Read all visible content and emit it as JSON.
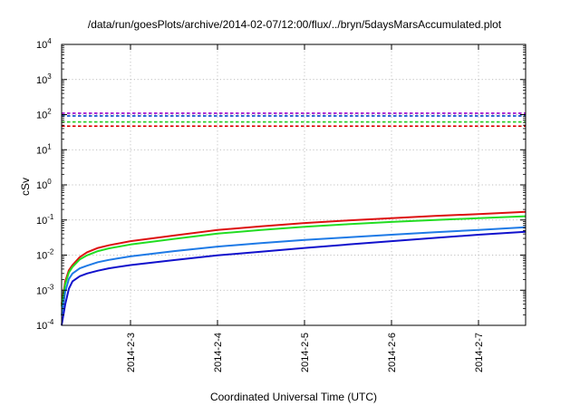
{
  "chart_data": {
    "type": "line",
    "title": "/data/run/goesPlots/archive/2014-02-07/12:00/flux/../bryn/5daysMarsAccumulated.plot",
    "xlabel": "Coordinated Universal Time (UTC)",
    "ylabel": "cSv",
    "yscale": "log",
    "ylim": [
      0.0001,
      10000
    ],
    "xlim": [
      "2014-02-02 05:00",
      "2014-02-07 13:00"
    ],
    "grid": true,
    "y_ticks": [
      {
        "value": 0.0001,
        "base": "10",
        "exp": "-4"
      },
      {
        "value": 0.001,
        "base": "10",
        "exp": "-3"
      },
      {
        "value": 0.01,
        "base": "10",
        "exp": "-2"
      },
      {
        "value": 0.1,
        "base": "10",
        "exp": "-1"
      },
      {
        "value": 1,
        "base": "10",
        "exp": "0"
      },
      {
        "value": 10,
        "base": "10",
        "exp": "1"
      },
      {
        "value": 100,
        "base": "10",
        "exp": "2"
      },
      {
        "value": 1000,
        "base": "10",
        "exp": "3"
      },
      {
        "value": 10000,
        "base": "10",
        "exp": "4"
      }
    ],
    "x_ticks": [
      {
        "value": "2014-02-03 00:00",
        "label": "2014-2-3"
      },
      {
        "value": "2014-02-04 00:00",
        "label": "2014-2-4"
      },
      {
        "value": "2014-02-05 00:00",
        "label": "2014-2-5"
      },
      {
        "value": "2014-02-06 00:00",
        "label": "2014-2-6"
      },
      {
        "value": "2014-02-07 00:00",
        "label": "2014-2-7"
      }
    ],
    "thresholds": [
      {
        "color": "#9900cc",
        "value": 110
      },
      {
        "color": "#0044cc",
        "value": 92
      },
      {
        "color": "#22cc22",
        "value": 62
      },
      {
        "color": "#dd0000",
        "value": 47
      }
    ],
    "series": [
      {
        "color": "#dd1111",
        "points": [
          [
            "2014-02-02 05:00",
            0.0004
          ],
          [
            "2014-02-02 06:00",
            0.0018
          ],
          [
            "2014-02-02 07:00",
            0.0037
          ],
          [
            "2014-02-02 08:00",
            0.0052
          ],
          [
            "2014-02-02 10:00",
            0.0088
          ],
          [
            "2014-02-02 12:00",
            0.012
          ],
          [
            "2014-02-02 15:00",
            0.016
          ],
          [
            "2014-02-02 18:00",
            0.019
          ],
          [
            "2014-02-03 00:00",
            0.025
          ],
          [
            "2014-02-03 12:00",
            0.036
          ],
          [
            "2014-02-04 00:00",
            0.052
          ],
          [
            "2014-02-04 12:00",
            0.066
          ],
          [
            "2014-02-05 00:00",
            0.082
          ],
          [
            "2014-02-05 12:00",
            0.097
          ],
          [
            "2014-02-06 00:00",
            0.113
          ],
          [
            "2014-02-06 12:00",
            0.13
          ],
          [
            "2014-02-07 00:00",
            0.148
          ],
          [
            "2014-02-07 13:00",
            0.17
          ]
        ]
      },
      {
        "color": "#22dd22",
        "points": [
          [
            "2014-02-02 05:00",
            0.00035
          ],
          [
            "2014-02-02 06:00",
            0.0015
          ],
          [
            "2014-02-02 07:00",
            0.0032
          ],
          [
            "2014-02-02 08:00",
            0.0046
          ],
          [
            "2014-02-02 10:00",
            0.0075
          ],
          [
            "2014-02-02 12:00",
            0.0098
          ],
          [
            "2014-02-02 15:00",
            0.013
          ],
          [
            "2014-02-02 18:00",
            0.0155
          ],
          [
            "2014-02-03 00:00",
            0.02
          ],
          [
            "2014-02-03 12:00",
            0.029
          ],
          [
            "2014-02-04 00:00",
            0.041
          ],
          [
            "2014-02-04 12:00",
            0.052
          ],
          [
            "2014-02-05 00:00",
            0.064
          ],
          [
            "2014-02-05 12:00",
            0.076
          ],
          [
            "2014-02-06 00:00",
            0.088
          ],
          [
            "2014-02-06 12:00",
            0.1
          ],
          [
            "2014-02-07 00:00",
            0.113
          ],
          [
            "2014-02-07 13:00",
            0.128
          ]
        ]
      },
      {
        "color": "#1e7ae6",
        "points": [
          [
            "2014-02-02 05:00",
            0.00019
          ],
          [
            "2014-02-02 06:00",
            0.0009
          ],
          [
            "2014-02-02 07:00",
            0.0021
          ],
          [
            "2014-02-02 08:00",
            0.003
          ],
          [
            "2014-02-02 10:00",
            0.0042
          ],
          [
            "2014-02-02 12:00",
            0.005
          ],
          [
            "2014-02-02 15:00",
            0.0063
          ],
          [
            "2014-02-02 18:00",
            0.0073
          ],
          [
            "2014-02-03 00:00",
            0.0092
          ],
          [
            "2014-02-03 12:00",
            0.013
          ],
          [
            "2014-02-04 00:00",
            0.0175
          ],
          [
            "2014-02-04 12:00",
            0.022
          ],
          [
            "2014-02-05 00:00",
            0.027
          ],
          [
            "2014-02-05 12:00",
            0.032
          ],
          [
            "2014-02-06 00:00",
            0.038
          ],
          [
            "2014-02-06 12:00",
            0.045
          ],
          [
            "2014-02-07 00:00",
            0.052
          ],
          [
            "2014-02-07 13:00",
            0.062
          ]
        ]
      },
      {
        "color": "#1111cc",
        "points": [
          [
            "2014-02-02 05:00",
            0.0001
          ],
          [
            "2014-02-02 06:00",
            0.0004
          ],
          [
            "2014-02-02 07:00",
            0.0011
          ],
          [
            "2014-02-02 08:00",
            0.0018
          ],
          [
            "2014-02-02 10:00",
            0.0025
          ],
          [
            "2014-02-02 12:00",
            0.003
          ],
          [
            "2014-02-02 15:00",
            0.0036
          ],
          [
            "2014-02-02 18:00",
            0.0042
          ],
          [
            "2014-02-03 00:00",
            0.0052
          ],
          [
            "2014-02-03 12:00",
            0.0072
          ],
          [
            "2014-02-04 00:00",
            0.0098
          ],
          [
            "2014-02-04 12:00",
            0.0125
          ],
          [
            "2014-02-05 00:00",
            0.016
          ],
          [
            "2014-02-05 12:00",
            0.02
          ],
          [
            "2014-02-06 00:00",
            0.025
          ],
          [
            "2014-02-06 12:00",
            0.031
          ],
          [
            "2014-02-07 00:00",
            0.038
          ],
          [
            "2014-02-07 13:00",
            0.046
          ]
        ]
      }
    ]
  }
}
